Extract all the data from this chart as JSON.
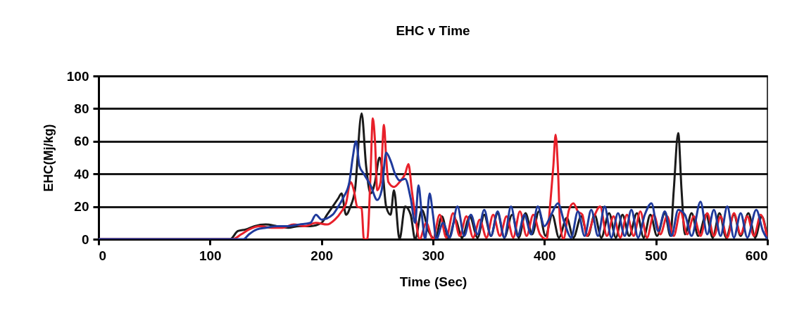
{
  "chart_data": {
    "type": "line",
    "title": "EHC v Time",
    "xlabel": "Time (Sec)",
    "ylabel": "EHC(Mj/kg)",
    "xlim": [
      0,
      600
    ],
    "xticks": [
      0,
      100,
      200,
      300,
      400,
      500,
      600
    ],
    "ylim": [
      0,
      100
    ],
    "yticks": [
      0,
      20,
      40,
      60,
      80,
      100
    ],
    "grid": "y",
    "legend": false,
    "marker": "none",
    "line_style": "solid",
    "series": [
      {
        "color": "#1a1a1a",
        "x": [
          0,
          100,
          118,
          125,
          132,
          140,
          150,
          160,
          170,
          180,
          190,
          200,
          205,
          210,
          215,
          218,
          222,
          226,
          230,
          236,
          240,
          244,
          248,
          252,
          255,
          258,
          262,
          265,
          270,
          275,
          280,
          284,
          290,
          296,
          302,
          308,
          314,
          320,
          326,
          333,
          340,
          346,
          352,
          358,
          364,
          371,
          377,
          383,
          389,
          395,
          401,
          407,
          413,
          420,
          426,
          433,
          439,
          445,
          451,
          458,
          464,
          470,
          476,
          483,
          489,
          495,
          501,
          508,
          513,
          516,
          520,
          523,
          526,
          532,
          538,
          545,
          551,
          557,
          563,
          570,
          576,
          583,
          589,
          595,
          600
        ],
        "values": [
          0,
          0,
          0,
          5,
          6,
          8,
          9,
          8,
          7,
          8,
          8,
          10,
          15,
          20,
          25,
          28,
          15,
          20,
          30,
          77,
          45,
          28,
          35,
          50,
          40,
          20,
          15,
          30,
          0,
          20,
          15,
          0,
          18,
          5,
          0,
          14,
          0,
          12,
          1,
          14,
          1,
          15,
          2,
          16,
          1,
          15,
          1,
          16,
          3,
          17,
          2,
          15,
          1,
          13,
          1,
          14,
          2,
          15,
          1,
          16,
          1,
          15,
          2,
          16,
          1,
          15,
          2,
          16,
          2,
          30,
          65,
          30,
          3,
          16,
          2,
          15,
          1,
          16,
          1,
          15,
          2,
          16,
          1,
          14,
          0
        ]
      },
      {
        "color": "#e8202a",
        "x": [
          0,
          120,
          128,
          135,
          145,
          155,
          165,
          175,
          185,
          195,
          205,
          212,
          218,
          222,
          226,
          229,
          232,
          236,
          238,
          241,
          244,
          246,
          248,
          250,
          253,
          256,
          258,
          260,
          265,
          270,
          275,
          278,
          281,
          284,
          288,
          294,
          300,
          306,
          312,
          318,
          324,
          330,
          336,
          342,
          348,
          354,
          360,
          366,
          372,
          378,
          384,
          390,
          396,
          402,
          405,
          408,
          410,
          412,
          414,
          417,
          422,
          426,
          430,
          434,
          438,
          444,
          450,
          456,
          462,
          468,
          474,
          480,
          486,
          492,
          498,
          504,
          510,
          516,
          522,
          528,
          534,
          540,
          546,
          552,
          558,
          564,
          570,
          576,
          582,
          588,
          594,
          600
        ],
        "values": [
          0,
          0,
          3,
          6,
          8,
          7,
          7,
          9,
          8,
          10,
          9,
          12,
          17,
          22,
          35,
          30,
          20,
          19,
          0,
          0,
          40,
          74,
          60,
          30,
          35,
          70,
          50,
          35,
          32,
          35,
          40,
          46,
          30,
          15,
          0,
          10,
          0,
          15,
          1,
          16,
          2,
          14,
          1,
          12,
          1,
          15,
          2,
          14,
          1,
          17,
          2,
          15,
          3,
          0,
          20,
          45,
          64,
          45,
          10,
          0,
          18,
          22,
          17,
          15,
          2,
          13,
          20,
          2,
          14,
          1,
          15,
          2,
          17,
          1,
          15,
          3,
          14,
          2,
          17,
          3,
          14,
          2,
          16,
          2,
          14,
          1,
          16,
          3,
          14,
          2,
          15,
          0
        ]
      },
      {
        "color": "#1f3a9c",
        "x": [
          0,
          130,
          135,
          142,
          150,
          160,
          170,
          180,
          190,
          195,
          200,
          210,
          215,
          220,
          225,
          228,
          231,
          234,
          238,
          244,
          250,
          254,
          258,
          262,
          266,
          270,
          275,
          280,
          284,
          287,
          290,
          293,
          297,
          300,
          303,
          309,
          315,
          322,
          328,
          334,
          340,
          346,
          352,
          358,
          364,
          370,
          376,
          382,
          388,
          394,
          400,
          406,
          412,
          418,
          424,
          430,
          436,
          442,
          448,
          454,
          460,
          466,
          472,
          478,
          484,
          490,
          496,
          502,
          508,
          514,
          520,
          526,
          532,
          540,
          546,
          552,
          558,
          564,
          570,
          576,
          582,
          590,
          596,
          600
        ],
        "values": [
          0,
          0,
          3,
          6,
          7,
          8,
          8,
          9,
          10,
          15,
          12,
          15,
          20,
          26,
          35,
          50,
          60,
          45,
          40,
          33,
          24,
          30,
          53,
          48,
          40,
          36,
          37,
          25,
          10,
          33,
          15,
          0,
          28,
          15,
          0,
          10,
          1,
          20,
          2,
          15,
          3,
          18,
          2,
          17,
          1,
          20,
          2,
          15,
          3,
          20,
          8,
          15,
          22,
          10,
          1,
          17,
          2,
          18,
          2,
          20,
          1,
          16,
          2,
          18,
          1,
          15,
          22,
          5,
          17,
          2,
          18,
          15,
          2,
          23,
          3,
          18,
          2,
          20,
          1,
          16,
          1,
          18,
          5,
          0
        ]
      }
    ]
  }
}
